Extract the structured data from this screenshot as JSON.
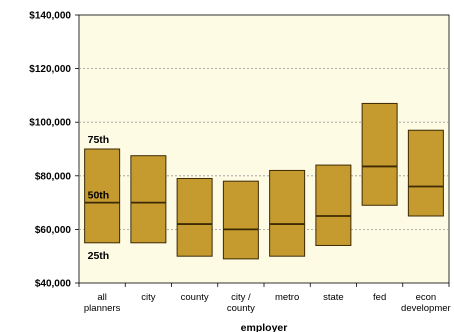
{
  "chart_data": {
    "type": "box",
    "title": "",
    "xlabel": "employer",
    "ylabel": "",
    "ylim": [
      40000,
      140000
    ],
    "yticks": [
      40000,
      60000,
      80000,
      100000,
      120000,
      140000
    ],
    "ytick_labels": [
      "$40,000",
      "$60,000",
      "$80,000",
      "$100,000",
      "$120,000",
      "$140,000"
    ],
    "grid": true,
    "categories": [
      [
        "all",
        "planners"
      ],
      [
        "city"
      ],
      [
        "county"
      ],
      [
        "city /",
        "county"
      ],
      [
        "metro"
      ],
      [
        "state"
      ],
      [
        "fed"
      ],
      [
        "econ",
        "developmer"
      ]
    ],
    "series": [
      {
        "p25": [
          55000,
          55000,
          50000,
          49000,
          50000,
          54000,
          69000,
          65000
        ],
        "p50": [
          70000,
          70000,
          62000,
          60000,
          62000,
          65000,
          83500,
          76000
        ],
        "p75": [
          90000,
          87500,
          79000,
          78000,
          82000,
          84000,
          107000,
          97000
        ]
      }
    ],
    "percentile_labels": [
      "75th",
      "50th",
      "25th"
    ],
    "colors": {
      "plot_bg": "#fdfbe3",
      "box_fill": "#c59a2f",
      "box_stroke": "#3d2a05",
      "median": "#3d2a05",
      "grid": "#9a9a9a",
      "axis": "#000000"
    }
  }
}
